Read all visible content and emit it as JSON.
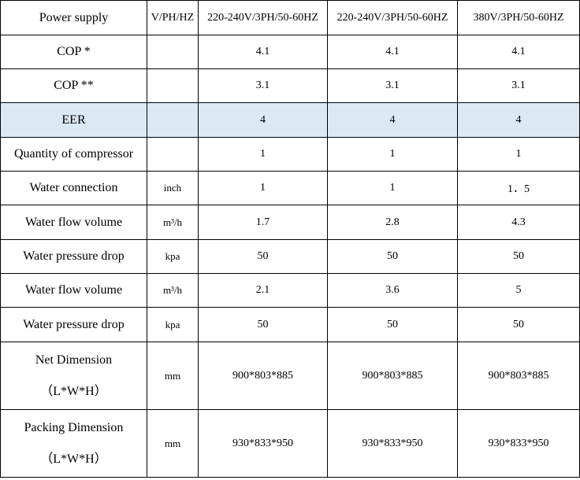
{
  "table": {
    "header": [
      "Power supply",
      "V/PH/HZ",
      "220-240V/3PH/50-60HZ",
      "220-240V/3PH/50-60HZ",
      "380V/3PH/50-60HZ"
    ],
    "rows": [
      [
        "COP *",
        "",
        "4.1",
        "4.1",
        "4.1"
      ],
      [
        "COP **",
        "",
        "3.1",
        "3.1",
        "3.1"
      ],
      [
        "EER",
        "",
        "4",
        "4",
        "4"
      ],
      [
        "Quantity of compressor",
        "",
        "1",
        "1",
        "1"
      ],
      [
        "Water connection",
        "inch",
        "1",
        "1",
        "1．5"
      ],
      [
        "Water flow volume",
        "m³/h",
        "1.7",
        "2.8",
        "4.3"
      ],
      [
        "Water pressure drop",
        "kpa",
        "50",
        "50",
        "50"
      ],
      [
        "Water flow volume",
        "m³/h",
        "2.1",
        "3.6",
        "5"
      ],
      [
        "Water pressure drop",
        "kpa",
        "50",
        "50",
        "50"
      ],
      [
        [
          "Net Dimension",
          "（L*W*H）"
        ],
        "mm",
        "900*803*885",
        "900*803*885",
        "900*803*885"
      ],
      [
        [
          "Packing Dimension",
          "（L*W*H）"
        ],
        "mm",
        "930*833*950",
        "930*833*950",
        "930*833*950"
      ]
    ]
  }
}
